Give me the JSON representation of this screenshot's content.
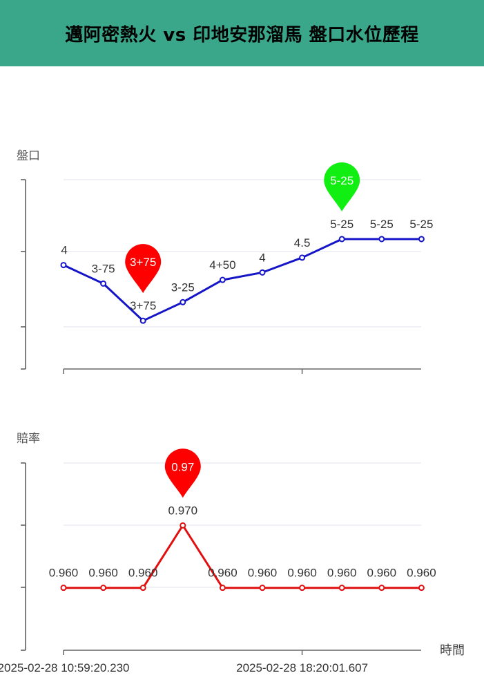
{
  "header": {
    "title": "邁阿密熱火 vs 印地安那溜馬 盤口水位歷程"
  },
  "chart_data": [
    {
      "type": "line",
      "ylabel": "盤口",
      "color": "#1414c8",
      "labels": [
        "4",
        "3-75",
        "3+75",
        "3-25",
        "4+50",
        "4",
        "4.5",
        "5-25",
        "5-25",
        "5-25"
      ],
      "values": [
        4,
        3.75,
        3.25,
        3.5,
        3.8,
        3.9,
        4.1,
        4.35,
        4.35,
        4.35
      ],
      "ylim": [
        2.6,
        5.15
      ],
      "markers": [
        {
          "index": 2,
          "label": "3+75",
          "color": "#ff0000"
        },
        {
          "index": 7,
          "label": "5-25",
          "color": "#11ee11"
        }
      ]
    },
    {
      "type": "line",
      "ylabel": "賠率",
      "xlabel": "時間",
      "color": "#e01010",
      "labels": [
        "0.960",
        "0.960",
        "0.960",
        "0.970",
        "0.960",
        "0.960",
        "0.960",
        "0.960",
        "0.960",
        "0.960"
      ],
      "values": [
        0.96,
        0.96,
        0.96,
        0.97,
        0.96,
        0.96,
        0.96,
        0.96,
        0.96,
        0.96
      ],
      "ylim": [
        0.95,
        0.98
      ],
      "markers": [
        {
          "index": 3,
          "label": "0.97",
          "color": "#ff0000"
        }
      ],
      "x_tick_labels": [
        {
          "index": 0,
          "label": "2025-02-28 10:59:20.230"
        },
        {
          "index": 6,
          "label": "2025-02-28 18:20:01.607"
        }
      ]
    }
  ]
}
